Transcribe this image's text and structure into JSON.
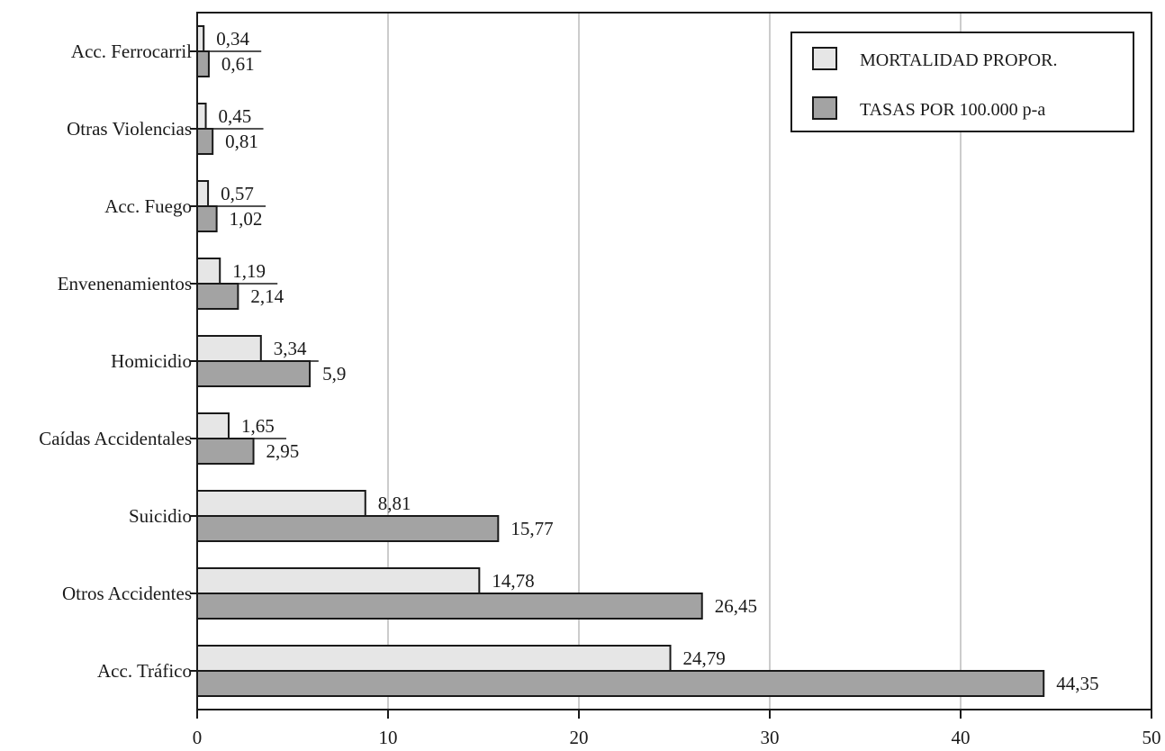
{
  "chart_data": {
    "type": "bar",
    "orientation": "horizontal",
    "categories": [
      "Acc. Ferrocarril",
      "Otras Violencias",
      "Acc. Fuego",
      "Envenenamientos",
      "Homicidio",
      "Caídas Accidentales",
      "Suicidio",
      "Otros Accidentes",
      "Acc. Tráfico"
    ],
    "series": [
      {
        "name": "MORTALIDAD PROPOR.",
        "values": [
          0.34,
          0.45,
          0.57,
          1.19,
          3.34,
          1.65,
          8.81,
          14.78,
          24.79
        ],
        "labels": [
          "0,34",
          "0,45",
          "0,57",
          "1,19",
          "3,34",
          "1,65",
          "8,81",
          "14,78",
          "24,79"
        ],
        "color": "#e6e6e6"
      },
      {
        "name": "TASAS POR 100.000 p-a",
        "values": [
          0.61,
          0.81,
          1.02,
          2.14,
          5.9,
          2.95,
          15.77,
          26.45,
          44.35
        ],
        "labels": [
          "0,61",
          "0,81",
          "1,02",
          "2,14",
          "5,9",
          "2,95",
          "15,77",
          "26,45",
          "44,35"
        ],
        "color": "#a3a3a3"
      }
    ],
    "xlim": [
      0,
      50
    ],
    "xticks": [
      "0",
      "10",
      "20",
      "30",
      "40",
      "50"
    ],
    "grid": true,
    "legend_position": "top-right",
    "title": "",
    "xlabel": "",
    "ylabel": ""
  }
}
